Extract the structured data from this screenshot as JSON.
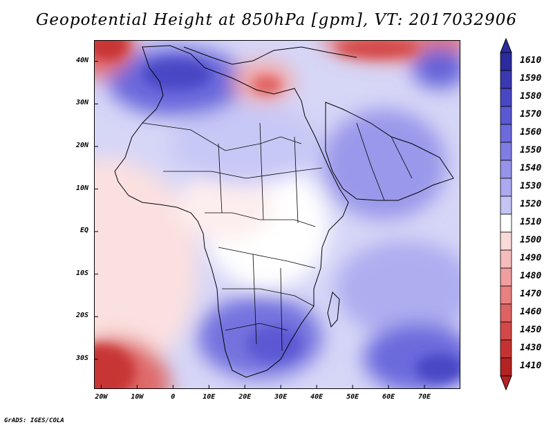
{
  "title": "Geopotential Height at 850hPa [gpm], VT: 2017032906",
  "credit": "GrADS: IGES/COLA",
  "map": {
    "lat_labels": [
      "40N",
      "30N",
      "20N",
      "10N",
      "EQ",
      "10S",
      "20S",
      "30S"
    ],
    "lon_labels": [
      "20W",
      "10W",
      "0",
      "10E",
      "20E",
      "30E",
      "40E",
      "50E",
      "60E",
      "70E"
    ],
    "lat_values": [
      40,
      30,
      20,
      10,
      0,
      -10,
      -20,
      -30
    ],
    "lon_values": [
      -20,
      -10,
      0,
      10,
      20,
      30,
      40,
      50,
      60,
      70
    ],
    "lon_range": [
      -22,
      80
    ],
    "lat_range": [
      -37,
      45
    ]
  },
  "colorbar": {
    "labels": [
      "1610",
      "1590",
      "1580",
      "1570",
      "1560",
      "1550",
      "1540",
      "1530",
      "1520",
      "1510",
      "1500",
      "1490",
      "1480",
      "1470",
      "1460",
      "1450",
      "1430",
      "1410"
    ],
    "colors": [
      "#2b2b9e",
      "#3a38b2",
      "#4a47c4",
      "#5b58d3",
      "#6c6add",
      "#7f7de4",
      "#9593ea",
      "#abaaf0",
      "#c4c4f5",
      "#ffffff",
      "#fbdada",
      "#f6bcbc",
      "#f09e9e",
      "#e88080",
      "#df6262",
      "#d44848",
      "#c63232",
      "#b52222"
    ]
  }
}
